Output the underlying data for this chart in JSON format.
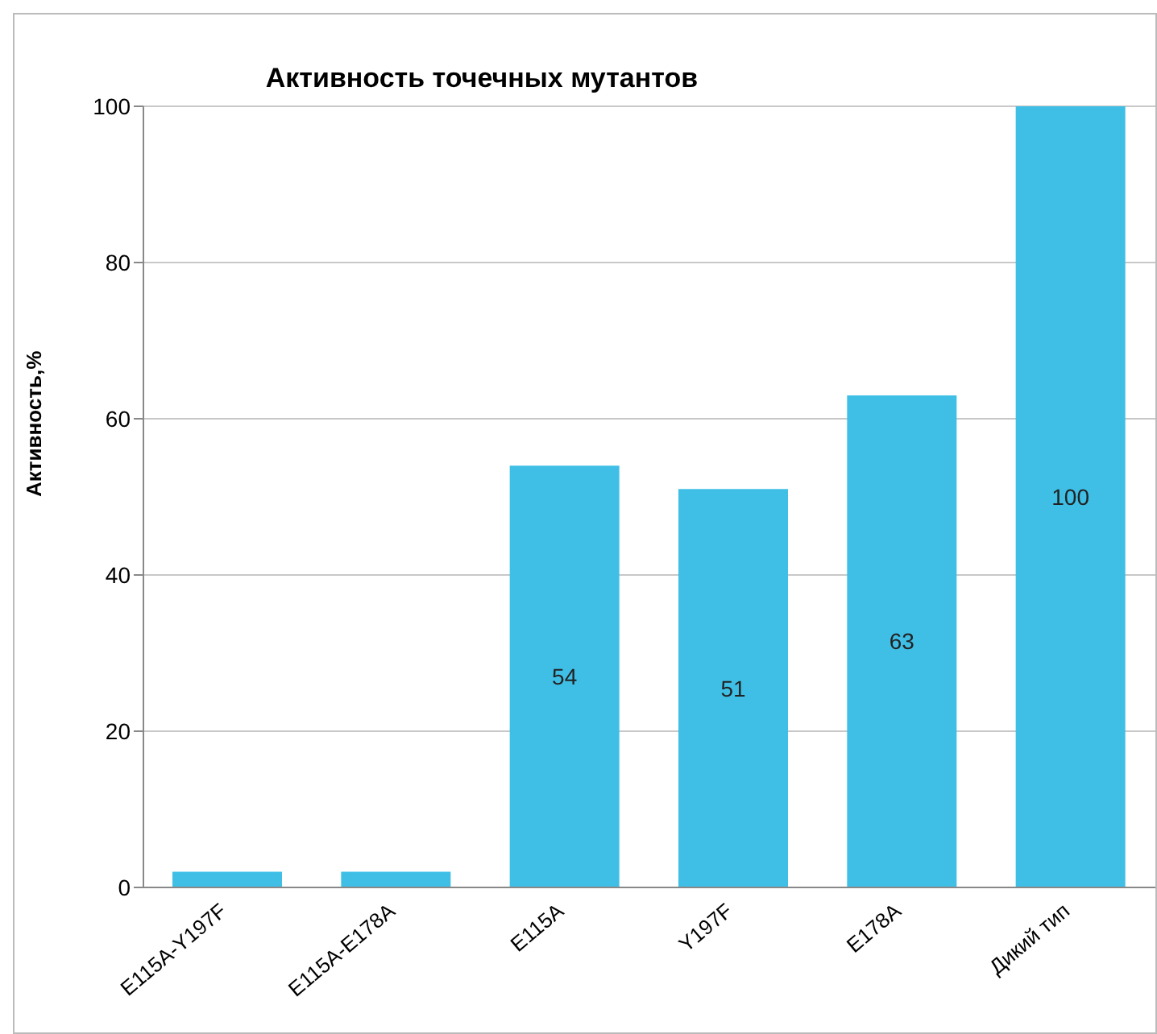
{
  "chart_data": {
    "type": "bar",
    "title": "Активность точечных мутантов",
    "ylabel": "Активность,%",
    "categories": [
      "E115A-Y197F",
      "E115A-E178A",
      "E115A",
      "Y197F",
      "E178A",
      "Дикий тип"
    ],
    "values": [
      2,
      2,
      54,
      51,
      63,
      100
    ],
    "value_labels": [
      null,
      null,
      "54",
      "51",
      "63",
      "100"
    ],
    "color": "#3fbfe6",
    "ylim": [
      0,
      100
    ],
    "yticks": [
      0,
      20,
      40,
      60,
      80,
      100
    ],
    "grid": "y",
    "legend": false
  }
}
